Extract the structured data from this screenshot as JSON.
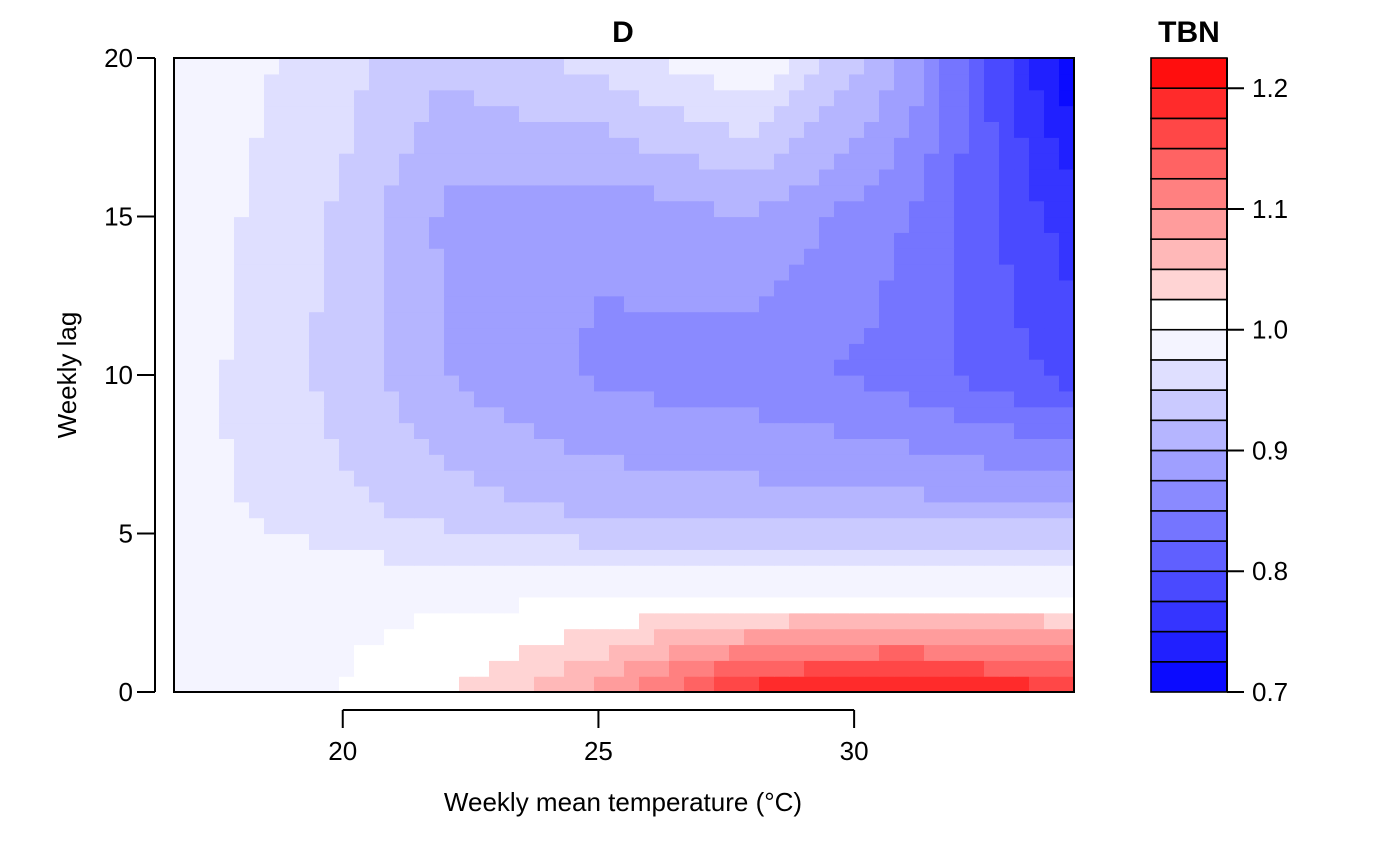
{
  "chart_data": {
    "type": "heatmap",
    "subtype": "filled-contour",
    "title": "D",
    "xlabel": "Weekly mean temperature (°C)",
    "ylabel": "Weekly lag",
    "xlim": [
      16.7,
      34.3
    ],
    "ylim": [
      0,
      20
    ],
    "x_ticks": [
      {
        "value": 20,
        "label": "20"
      },
      {
        "value": 25,
        "label": "25"
      },
      {
        "value": 30,
        "label": "30"
      }
    ],
    "y_ticks": [
      {
        "value": 0,
        "label": "0"
      },
      {
        "value": 5,
        "label": "5"
      },
      {
        "value": 10,
        "label": "10"
      },
      {
        "value": 15,
        "label": "15"
      },
      {
        "value": 20,
        "label": "20"
      }
    ],
    "legend": {
      "title": "TBN",
      "placement": "right",
      "min": 0.7,
      "max": 1.225,
      "step": 0.025,
      "ticks": [
        {
          "value": 0.7,
          "label": "0.7"
        },
        {
          "value": 0.8,
          "label": "0.8"
        },
        {
          "value": 0.9,
          "label": "0.9"
        },
        {
          "value": 1.0,
          "label": "1.0"
        },
        {
          "value": 1.1,
          "label": "1.1"
        },
        {
          "value": 1.2,
          "label": "1.2"
        }
      ]
    },
    "colors": {
      "low": "#0000ff",
      "mid": "#ffffff",
      "high": "#ff0000"
    },
    "surface_samples": {
      "x": [
        16.7,
        20,
        22,
        25,
        28,
        31,
        34.3
      ],
      "lag": [
        0,
        3,
        6,
        10,
        15,
        20
      ],
      "values": [
        [
          0.999,
          1.0,
          1.02,
          1.08,
          1.19,
          1.215,
          1.18
        ],
        [
          0.999,
          0.995,
          0.995,
          0.996,
          1.0,
          1.005,
          1.005
        ],
        [
          0.985,
          0.955,
          0.935,
          0.915,
          0.91,
          0.905,
          0.9
        ],
        [
          0.99,
          0.94,
          0.9,
          0.87,
          0.86,
          0.84,
          0.79
        ],
        [
          0.995,
          0.945,
          0.895,
          0.88,
          0.9,
          0.85,
          0.76
        ],
        [
          0.999,
          0.96,
          0.93,
          0.96,
          1.0,
          0.9,
          0.7
        ]
      ]
    }
  }
}
